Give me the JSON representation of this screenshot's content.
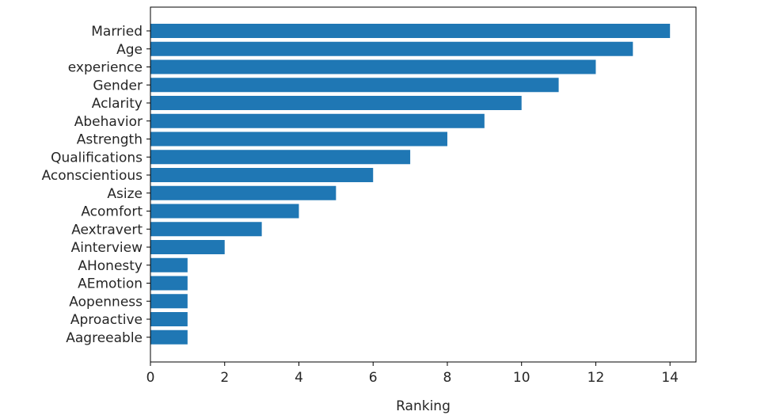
{
  "chart_data": {
    "type": "bar",
    "orientation": "horizontal",
    "categories": [
      "Married",
      "Age",
      "experience",
      "Gender",
      "Aclarity",
      "Abehavior",
      "Astrength",
      "Qualifications",
      "Aconscientious",
      "Asize",
      "Acomfort",
      "Aextravert",
      "Ainterview",
      "AHonesty",
      "AEmotion",
      "Aopenness",
      "Aproactive",
      "Aagreeable"
    ],
    "values": [
      14,
      13,
      12,
      11,
      10,
      9,
      8,
      7,
      6,
      5,
      4,
      3,
      2,
      1,
      1,
      1,
      1,
      1
    ],
    "xlabel": "Ranking",
    "ylabel": "",
    "title": "",
    "xlim": [
      0,
      14.7
    ],
    "xticks": [
      0,
      2,
      4,
      6,
      8,
      10,
      12,
      14
    ],
    "bar_color": "#1f77b4",
    "grid": false,
    "legend": "none"
  }
}
